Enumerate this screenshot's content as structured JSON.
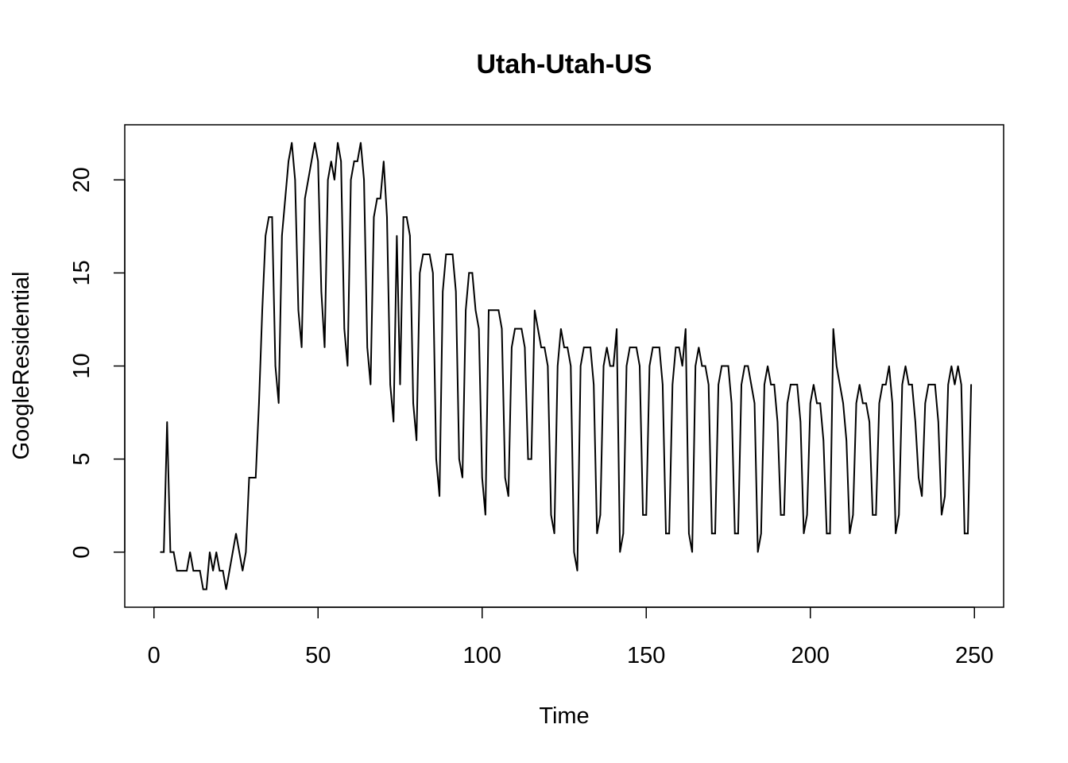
{
  "chart_data": {
    "type": "line",
    "title": "Utah-Utah-US",
    "xlabel": "Time",
    "ylabel": "GoogleResidential",
    "xlim": [
      -8.9,
      258.9
    ],
    "ylim": [
      -2.96,
      22.96
    ],
    "xticks": [
      0,
      50,
      100,
      150,
      200,
      250
    ],
    "yticks": [
      0,
      5,
      10,
      15,
      20
    ],
    "grid": false,
    "series": [
      {
        "x_start": 2,
        "values": [
          0,
          0,
          7,
          0,
          0,
          -1,
          -1,
          -1,
          -1,
          0,
          -1,
          -1,
          -1,
          -2,
          -2,
          0,
          -1,
          0,
          -1,
          -1,
          -2,
          -1,
          0,
          1,
          0,
          -1,
          0,
          4,
          4,
          4,
          8,
          13,
          17,
          18,
          18,
          10,
          8,
          17,
          19,
          21,
          22,
          20,
          13,
          11,
          19,
          20,
          21,
          22,
          21,
          14,
          11,
          20,
          21,
          20,
          22,
          21,
          12,
          10,
          20,
          21,
          21,
          22,
          20,
          11,
          9,
          18,
          19,
          19,
          21,
          18,
          9,
          7,
          17,
          9,
          18,
          18,
          17,
          8,
          6,
          15,
          16,
          16,
          16,
          15,
          5,
          3,
          14,
          16,
          16,
          16,
          14,
          5,
          4,
          13,
          15,
          15,
          13,
          12,
          4,
          2,
          13,
          13,
          13,
          13,
          12,
          4,
          3,
          11,
          12,
          12,
          12,
          11,
          5,
          5,
          13,
          12,
          11,
          11,
          10,
          2,
          1,
          10,
          12,
          11,
          11,
          10,
          0,
          -1,
          10,
          11,
          11,
          11,
          9,
          1,
          2,
          10,
          11,
          10,
          10,
          12,
          0,
          1,
          10,
          11,
          11,
          11,
          10,
          2,
          2,
          10,
          11,
          11,
          11,
          9,
          1,
          1,
          9,
          11,
          11,
          10,
          12,
          1,
          0,
          10,
          11,
          10,
          10,
          9,
          1,
          1,
          9,
          10,
          10,
          10,
          8,
          1,
          1,
          9,
          10,
          10,
          9,
          8,
          0,
          1,
          9,
          10,
          9,
          9,
          7,
          2,
          2,
          8,
          9,
          9,
          9,
          7,
          1,
          2,
          8,
          9,
          8,
          8,
          6,
          1,
          1,
          12,
          10,
          9,
          8,
          6,
          1,
          2,
          8,
          9,
          8,
          8,
          7,
          2,
          2,
          8,
          9,
          9,
          10,
          8,
          1,
          2,
          9,
          10,
          9,
          9,
          7,
          4,
          3,
          8,
          9,
          9,
          9,
          7,
          2,
          3,
          9,
          10,
          9,
          10,
          9,
          1,
          1,
          9
        ]
      }
    ]
  }
}
